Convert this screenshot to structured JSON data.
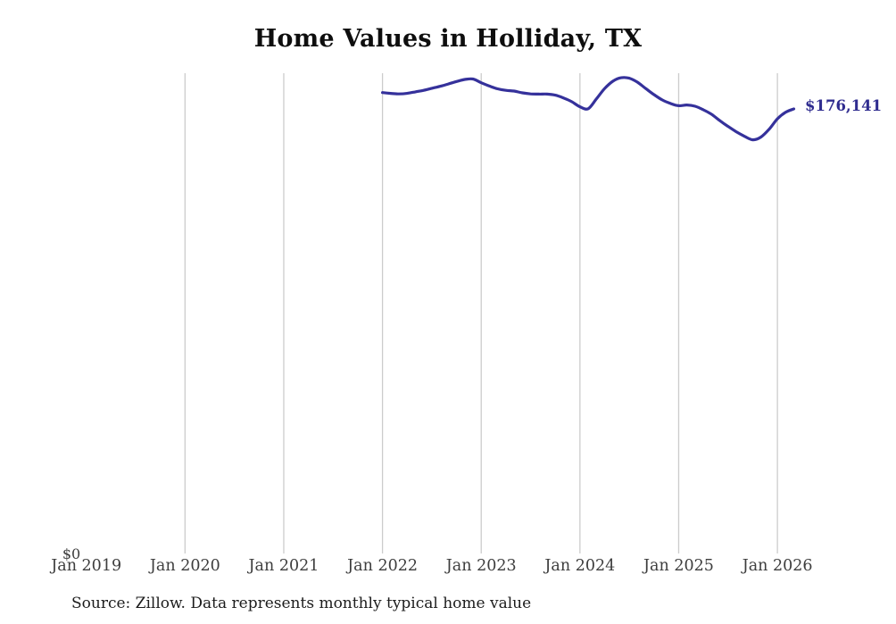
{
  "header": {
    "title": "Home Values in Holliday, TX"
  },
  "footer": {
    "source_note": "Source: Zillow. Data represents monthly typical home value"
  },
  "chart_data": {
    "type": "line",
    "title": "Home Values in Holliday, TX",
    "xlabel": "",
    "ylabel": "",
    "ylim": [
      0,
      190000
    ],
    "grid": "vertical-only",
    "x_tick_labels": [
      "Jan 2019",
      "Jan 2020",
      "Jan 2021",
      "Jan 2022",
      "Jan 2023",
      "Jan 2024",
      "Jan 2025",
      "Jan 2026"
    ],
    "x_ticks_with_gridline": [
      "Jan 2020",
      "Jan 2021",
      "Jan 2022",
      "Jan 2023",
      "Jan 2024",
      "Jan 2025",
      "Jan 2026"
    ],
    "y_tick_labels": [
      "$0"
    ],
    "y_zero_label": "$0",
    "end_label": "$176,141",
    "last_value": 176141,
    "colors": {
      "line": "#35319b",
      "end_label": "#2f2c8f",
      "gridline": "#cccccc",
      "tick_text": "#3d3d3d",
      "title_text": "#0e0e0e"
    },
    "series": [
      {
        "name": "Monthly typical home value",
        "unit": "USD",
        "months": [
          "2022-01",
          "2022-02",
          "2022-03",
          "2022-04",
          "2022-05",
          "2022-06",
          "2022-07",
          "2022-08",
          "2022-09",
          "2022-10",
          "2022-11",
          "2022-12",
          "2023-01",
          "2023-02",
          "2023-03",
          "2023-04",
          "2023-05",
          "2023-06",
          "2023-07",
          "2023-08",
          "2023-09",
          "2023-10",
          "2023-11",
          "2023-12",
          "2024-01",
          "2024-02",
          "2024-03",
          "2024-04",
          "2024-05",
          "2024-06",
          "2024-07",
          "2024-08",
          "2024-09",
          "2024-10",
          "2024-11",
          "2024-12",
          "2025-01",
          "2025-02",
          "2025-03",
          "2025-04",
          "2025-05",
          "2025-06",
          "2025-07",
          "2025-08",
          "2025-09",
          "2025-10",
          "2025-11",
          "2025-12",
          "2026-01",
          "2026-02",
          "2026-03"
        ],
        "values": [
          182600,
          182300,
          182100,
          182300,
          182900,
          183500,
          184300,
          185100,
          186000,
          187000,
          187800,
          188000,
          186500,
          185200,
          184100,
          183500,
          183200,
          182500,
          182100,
          182000,
          182000,
          181600,
          180500,
          179000,
          177000,
          176200,
          180100,
          184200,
          187100,
          188500,
          188300,
          186700,
          184200,
          181800,
          179700,
          178300,
          177400,
          177700,
          177200,
          175800,
          174000,
          171500,
          169200,
          167100,
          165300,
          163900,
          165000,
          168100,
          172200,
          174800,
          176141
        ]
      }
    ]
  }
}
